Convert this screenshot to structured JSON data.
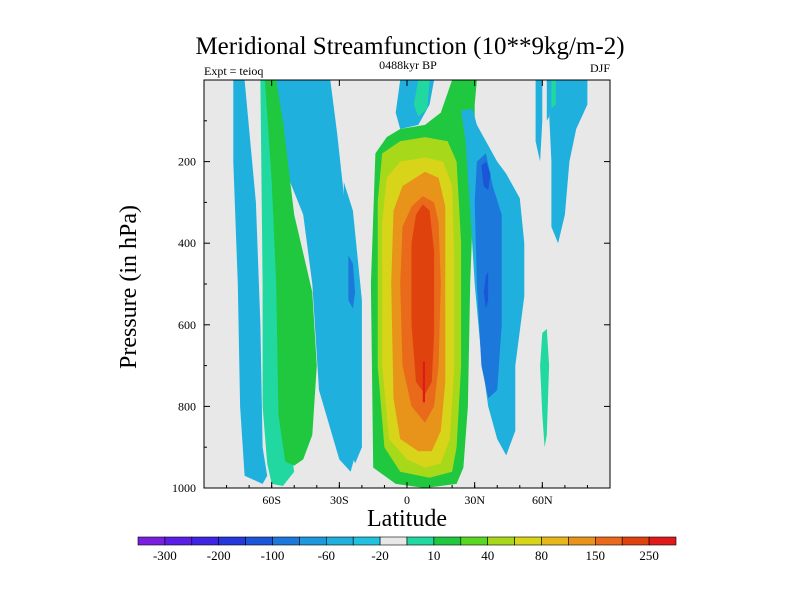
{
  "chart_data": {
    "type": "heatmap",
    "title": "Meridional Streamfunction (10**9kg/m-2)",
    "left_label": "Expt = teioq",
    "center_label": "0488kyr BP",
    "right_label": "DJF",
    "xlabel": "Latitude",
    "ylabel": "Pressure (in hPa)",
    "xlim": [
      -90,
      90
    ],
    "ylim": [
      0,
      1000
    ],
    "x_ticks": [
      {
        "value": -60,
        "label": "60S"
      },
      {
        "value": -30,
        "label": "30S"
      },
      {
        "value": 0,
        "label": "0"
      },
      {
        "value": 30,
        "label": "30N"
      },
      {
        "value": 60,
        "label": "60N"
      }
    ],
    "y_ticks": [
      {
        "value": 200,
        "label": "200"
      },
      {
        "value": 400,
        "label": "400"
      },
      {
        "value": 600,
        "label": "600"
      },
      {
        "value": 800,
        "label": "800"
      },
      {
        "value": 1000,
        "label": "1000"
      }
    ],
    "colorbar": {
      "colors": [
        "#7a1fe0",
        "#5c1ee6",
        "#3f24e4",
        "#2438dc",
        "#1b55d8",
        "#1c78da",
        "#1d98dc",
        "#1fb0de",
        "#20c2e0",
        "#e8e8e8",
        "#20d8a0",
        "#20c840",
        "#58d820",
        "#a8d81a",
        "#d8d41a",
        "#e8b81a",
        "#e8941a",
        "#e86a1a",
        "#e0420e",
        "#e01a1a"
      ],
      "labels": [
        {
          "after_index": 0,
          "label": "-300"
        },
        {
          "after_index": 2,
          "label": "-200"
        },
        {
          "after_index": 4,
          "label": "-100"
        },
        {
          "after_index": 6,
          "label": "-60"
        },
        {
          "after_index": 8,
          "label": "-20"
        },
        {
          "after_index": 10,
          "label": "10"
        },
        {
          "after_index": 12,
          "label": "40"
        },
        {
          "after_index": 14,
          "label": "80"
        },
        {
          "after_index": 16,
          "label": "150"
        },
        {
          "after_index": 18,
          "label": "250"
        }
      ]
    },
    "regions": [
      {
        "level": "-20",
        "color": "#1fb0de",
        "lat_pts": [
          [
            -77,
            0
          ],
          [
            -72,
            0
          ],
          [
            -70,
            120
          ],
          [
            -67,
            300
          ],
          [
            -65,
            600
          ],
          [
            -64,
            900
          ],
          [
            -62,
            970
          ],
          [
            -64,
            990
          ],
          [
            -72,
            970
          ],
          [
            -74,
            800
          ],
          [
            -75,
            500
          ],
          [
            -77,
            200
          ]
        ]
      },
      {
        "level": "-20",
        "color": "#1fb0de",
        "lat_pts": [
          [
            -60,
            0
          ],
          [
            -34,
            0
          ],
          [
            -31,
            130
          ],
          [
            -28,
            280
          ],
          [
            -25,
            420
          ],
          [
            -25,
            700
          ],
          [
            -22,
            900
          ],
          [
            -25,
            960
          ],
          [
            -30,
            930
          ],
          [
            -39,
            760
          ],
          [
            -42,
            500
          ],
          [
            -46,
            330
          ],
          [
            -54,
            220
          ],
          [
            -58,
            150
          ]
        ]
      },
      {
        "level": "10",
        "color": "#20d8a0",
        "lat_pts": [
          [
            -65,
            0
          ],
          [
            -59,
            0
          ],
          [
            -57,
            250
          ],
          [
            -55,
            560
          ],
          [
            -53,
            850
          ],
          [
            -50,
            960
          ],
          [
            -55,
            995
          ],
          [
            -60,
            990
          ],
          [
            -62,
            940
          ],
          [
            -64,
            800
          ],
          [
            -64,
            500
          ]
        ]
      },
      {
        "level": "40",
        "color": "#20c840",
        "lat_pts": [
          [
            -63,
            0
          ],
          [
            -58,
            0
          ],
          [
            -55,
            100
          ],
          [
            -50,
            330
          ],
          [
            -42,
            520
          ],
          [
            -40,
            700
          ],
          [
            -42,
            870
          ],
          [
            -46,
            930
          ],
          [
            -50,
            945
          ],
          [
            -54,
            935
          ],
          [
            -57,
            820
          ],
          [
            -58,
            500
          ],
          [
            -60,
            250
          ]
        ]
      },
      {
        "level": "-20",
        "color": "#1fb0de",
        "lat_pts": [
          [
            -28,
            250
          ],
          [
            -24,
            320
          ],
          [
            -20,
            540
          ],
          [
            -20,
            900
          ],
          [
            -23,
            940
          ],
          [
            -26,
            890
          ],
          [
            -28,
            760
          ],
          [
            -28,
            450
          ]
        ]
      },
      {
        "level": "-60",
        "color": "#1c78da",
        "lat_pts": [
          [
            -26,
            430
          ],
          [
            -24,
            450
          ],
          [
            -23,
            520
          ],
          [
            -24,
            560
          ],
          [
            -26,
            540
          ]
        ]
      },
      {
        "level": "-20",
        "color": "#1fb0de",
        "lat_pts": [
          [
            -3,
            0
          ],
          [
            12,
            0
          ],
          [
            10,
            60
          ],
          [
            5,
            110
          ],
          [
            -3,
            120
          ],
          [
            -5,
            80
          ]
        ]
      },
      {
        "level": "10",
        "color": "#20d8a0",
        "lat_pts": [
          [
            5,
            0
          ],
          [
            10,
            0
          ],
          [
            9,
            70
          ],
          [
            5,
            90
          ],
          [
            3,
            60
          ]
        ]
      },
      {
        "level": "40",
        "color": "#20c840",
        "lat_pts": [
          [
            20,
            0
          ],
          [
            31,
            0
          ],
          [
            30,
            60
          ],
          [
            30,
            200
          ],
          [
            28,
            500
          ],
          [
            27,
            800
          ],
          [
            25,
            950
          ],
          [
            22,
            990
          ],
          [
            8,
            1000
          ],
          [
            -5,
            990
          ],
          [
            -15,
            950
          ],
          [
            -16,
            500
          ],
          [
            -14,
            180
          ],
          [
            -9,
            140
          ],
          [
            -3,
            120
          ],
          [
            8,
            110
          ],
          [
            15,
            80
          ]
        ]
      },
      {
        "level": "80",
        "color": "#a8d81a",
        "lat_pts": [
          [
            8,
            140
          ],
          [
            18,
            150
          ],
          [
            22,
            200
          ],
          [
            24,
            400
          ],
          [
            24,
            700
          ],
          [
            22,
            900
          ],
          [
            20,
            960
          ],
          [
            10,
            975
          ],
          [
            -3,
            960
          ],
          [
            -10,
            900
          ],
          [
            -13,
            700
          ],
          [
            -13,
            300
          ],
          [
            -11,
            180
          ],
          [
            -3,
            150
          ]
        ]
      },
      {
        "level": "150",
        "color": "#d8d41a",
        "lat_pts": [
          [
            8,
            190
          ],
          [
            16,
            200
          ],
          [
            20,
            260
          ],
          [
            21,
            450
          ],
          [
            21,
            700
          ],
          [
            19,
            880
          ],
          [
            15,
            940
          ],
          [
            8,
            950
          ],
          [
            0,
            930
          ],
          [
            -8,
            880
          ],
          [
            -11,
            700
          ],
          [
            -11,
            350
          ],
          [
            -9,
            240
          ],
          [
            -3,
            200
          ]
        ]
      },
      {
        "level": "250",
        "color": "#e8941a",
        "lat_pts": [
          [
            8,
            225
          ],
          [
            14,
            240
          ],
          [
            17,
            310
          ],
          [
            17,
            500
          ],
          [
            17,
            740
          ],
          [
            15,
            860
          ],
          [
            11,
            910
          ],
          [
            5,
            910
          ],
          [
            -3,
            880
          ],
          [
            -6,
            780
          ],
          [
            -7,
            500
          ],
          [
            -6,
            320
          ],
          [
            -2,
            260
          ]
        ]
      },
      {
        "level": "300",
        "color": "#e86a1a",
        "lat_pts": [
          [
            7,
            285
          ],
          [
            12,
            300
          ],
          [
            14,
            350
          ],
          [
            15,
            500
          ],
          [
            14,
            700
          ],
          [
            12,
            800
          ],
          [
            8,
            840
          ],
          [
            2,
            800
          ],
          [
            -2,
            700
          ],
          [
            -3,
            500
          ],
          [
            -2,
            360
          ],
          [
            2,
            310
          ]
        ]
      },
      {
        "level": "400",
        "color": "#e0420e",
        "lat_pts": [
          [
            7,
            305
          ],
          [
            10,
            320
          ],
          [
            12,
            420
          ],
          [
            12,
            620
          ],
          [
            11,
            740
          ],
          [
            8,
            770
          ],
          [
            4,
            740
          ],
          [
            2,
            600
          ],
          [
            2,
            400
          ],
          [
            4,
            330
          ]
        ]
      },
      {
        "level": "450",
        "color": "#e01a1a",
        "lat_pts": [
          [
            7,
            690
          ],
          [
            8,
            690
          ],
          [
            8,
            790
          ],
          [
            7,
            790
          ]
        ]
      },
      {
        "level": "-20",
        "color": "#1fb0de",
        "lat_pts": [
          [
            24,
            75
          ],
          [
            29,
            70
          ],
          [
            31,
            110
          ],
          [
            35,
            150
          ],
          [
            40,
            200
          ],
          [
            44,
            230
          ],
          [
            50,
            290
          ],
          [
            52,
            400
          ],
          [
            52,
            530
          ],
          [
            48,
            700
          ],
          [
            48,
            860
          ],
          [
            44,
            920
          ],
          [
            40,
            880
          ],
          [
            36,
            800
          ],
          [
            33,
            680
          ],
          [
            30,
            500
          ],
          [
            28,
            320
          ],
          [
            26,
            150
          ]
        ]
      },
      {
        "level": "-60",
        "color": "#1c78da",
        "lat_pts": [
          [
            31,
            200
          ],
          [
            35,
            180
          ],
          [
            38,
            260
          ],
          [
            42,
            330
          ],
          [
            42,
            600
          ],
          [
            40,
            760
          ],
          [
            36,
            780
          ],
          [
            33,
            700
          ],
          [
            31,
            500
          ],
          [
            30,
            300
          ]
        ]
      },
      {
        "level": "-100",
        "color": "#1b55d8",
        "lat_pts": [
          [
            33,
            210
          ],
          [
            35,
            200
          ],
          [
            37,
            230
          ],
          [
            36,
            270
          ],
          [
            34,
            260
          ]
        ]
      },
      {
        "level": "-100",
        "color": "#1b55d8",
        "lat_pts": [
          [
            35,
            480
          ],
          [
            36,
            470
          ],
          [
            36,
            540
          ],
          [
            35,
            560
          ],
          [
            34,
            520
          ]
        ]
      },
      {
        "level": "-20",
        "color": "#1fb0de",
        "lat_pts": [
          [
            57,
            0
          ],
          [
            60,
            0
          ],
          [
            60,
            100
          ],
          [
            59,
            200
          ],
          [
            57,
            150
          ]
        ]
      },
      {
        "level": "-20",
        "color": "#1fb0de",
        "lat_pts": [
          [
            62,
            0
          ],
          [
            80,
            0
          ],
          [
            80,
            60
          ],
          [
            75,
            120
          ],
          [
            72,
            200
          ],
          [
            70,
            330
          ],
          [
            67,
            400
          ],
          [
            64,
            360
          ],
          [
            64,
            200
          ],
          [
            63,
            80
          ]
        ]
      },
      {
        "level": "10",
        "color": "#20d8a0",
        "lat_pts": [
          [
            64,
            0
          ],
          [
            66,
            0
          ],
          [
            66,
            60
          ],
          [
            64,
            70
          ]
        ]
      },
      {
        "level": "-20",
        "color": "#1fb0de",
        "lat_pts": [
          [
            62,
            0
          ],
          [
            63,
            0
          ],
          [
            63,
            90
          ],
          [
            62,
            100
          ]
        ]
      },
      {
        "level": "10",
        "color": "#20d8a0",
        "lat_pts": [
          [
            60,
            620
          ],
          [
            62,
            610
          ],
          [
            63,
            700
          ],
          [
            62,
            870
          ],
          [
            61,
            900
          ],
          [
            60,
            820
          ],
          [
            59,
            700
          ]
        ]
      },
      {
        "level": "-20",
        "color": "#1fb0de",
        "lat_pts": [
          [
            -1,
            0
          ],
          [
            1,
            0
          ],
          [
            1,
            50
          ],
          [
            -1,
            50
          ]
        ]
      }
    ]
  }
}
